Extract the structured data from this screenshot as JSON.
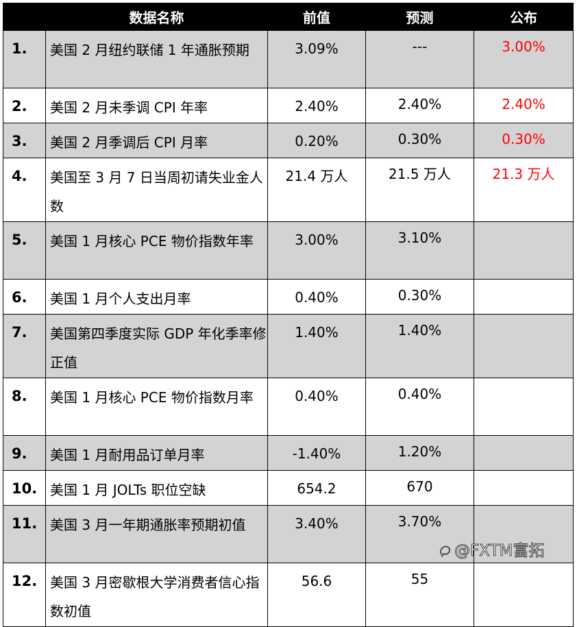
{
  "header": {
    "name": "数据名称",
    "previous": "前值",
    "forecast": "预测",
    "actual": "公布"
  },
  "rows": [
    {
      "num": "1.",
      "name": "美国 2 月纽约联储 1 年通胀预期",
      "previous": "3.09%",
      "forecast": "---",
      "actual": "3.00%",
      "shade": "gray"
    },
    {
      "num": "2.",
      "name": "美国 2 月未季调 CPI 年率",
      "previous": "2.40%",
      "forecast": "2.40%",
      "actual": "2.40%",
      "shade": "white"
    },
    {
      "num": "3.",
      "name": "美国 2 月季调后 CPI 月率",
      "previous": "0.20%",
      "forecast": "0.30%",
      "actual": "0.30%",
      "shade": "gray"
    },
    {
      "num": "4.",
      "name": "美国至 3 月 7 日当周初请失业金人数",
      "previous": "21.4 万人",
      "forecast": "21.5 万人",
      "actual": "21.3 万人",
      "shade": "white"
    },
    {
      "num": "5.",
      "name": "美国 1 月核心 PCE 物价指数年率",
      "previous": "3.00%",
      "forecast": "3.10%",
      "actual": "",
      "shade": "gray"
    },
    {
      "num": "6.",
      "name": "美国 1 月个人支出月率",
      "previous": "0.40%",
      "forecast": "0.30%",
      "actual": "",
      "shade": "white"
    },
    {
      "num": "7.",
      "name": "美国第四季度实际 GDP 年化季率修正值",
      "previous": "1.40%",
      "forecast": "1.40%",
      "actual": "",
      "shade": "gray"
    },
    {
      "num": "8.",
      "name": "美国 1 月核心 PCE 物价指数月率",
      "previous": "0.40%",
      "forecast": "0.40%",
      "actual": "",
      "shade": "white"
    },
    {
      "num": "9.",
      "name": "美国 1 月耐用品订单月率",
      "previous": "-1.40%",
      "forecast": "1.20%",
      "actual": "",
      "shade": "gray"
    },
    {
      "num": "10.",
      "name": "美国 1 月 JOLTs 职位空缺",
      "previous": "654.2",
      "forecast": "670",
      "actual": "",
      "shade": "white"
    },
    {
      "num": "11.",
      "name": "美国 3 月一年期通胀率预期初值",
      "previous": "3.40%",
      "forecast": "3.70%",
      "actual": "",
      "shade": "gray"
    },
    {
      "num": "12.",
      "name": "美国 3 月密歇根大学消费者信心指数初值",
      "previous": "56.6",
      "forecast": "55",
      "actual": "",
      "shade": "white"
    }
  ],
  "colors": {
    "header_bg": "#000000",
    "header_text": "#ffffff",
    "shade_gray": "#d3d3d3",
    "actual_text": "#ff0000"
  },
  "watermark": {
    "text": "@FXTM富拓",
    "icon": "zhihu-logo-icon"
  }
}
